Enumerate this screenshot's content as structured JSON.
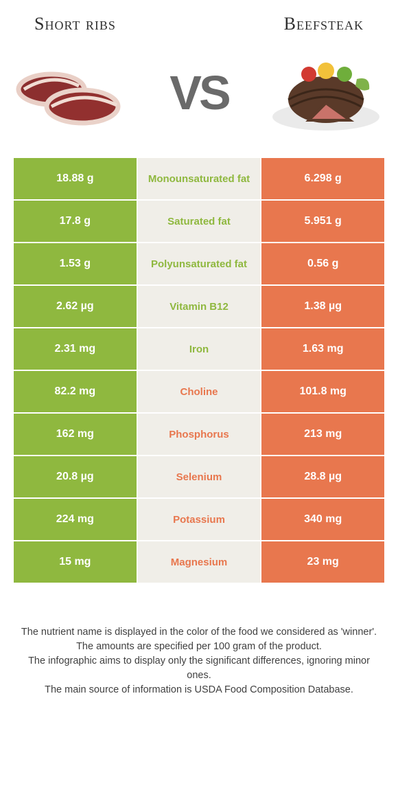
{
  "colors": {
    "left": "#8fb83f",
    "right": "#e8774e",
    "middle_bg": "#f0eee8",
    "label_left_win": "#8fb83f",
    "label_right_win": "#e8774e"
  },
  "titles": {
    "left": "Short ribs",
    "right": "Beefsteak"
  },
  "vs": "VS",
  "rows": [
    {
      "left": "18.88 g",
      "label": "Monounsaturated fat",
      "right": "6.298 g",
      "winner": "left"
    },
    {
      "left": "17.8 g",
      "label": "Saturated fat",
      "right": "5.951 g",
      "winner": "left"
    },
    {
      "left": "1.53 g",
      "label": "Polyunsaturated fat",
      "right": "0.56 g",
      "winner": "left"
    },
    {
      "left": "2.62 µg",
      "label": "Vitamin B12",
      "right": "1.38 µg",
      "winner": "left"
    },
    {
      "left": "2.31 mg",
      "label": "Iron",
      "right": "1.63 mg",
      "winner": "left"
    },
    {
      "left": "82.2 mg",
      "label": "Choline",
      "right": "101.8 mg",
      "winner": "right"
    },
    {
      "left": "162 mg",
      "label": "Phosphorus",
      "right": "213 mg",
      "winner": "right"
    },
    {
      "left": "20.8 µg",
      "label": "Selenium",
      "right": "28.8 µg",
      "winner": "right"
    },
    {
      "left": "224 mg",
      "label": "Potassium",
      "right": "340 mg",
      "winner": "right"
    },
    {
      "left": "15 mg",
      "label": "Magnesium",
      "right": "23 mg",
      "winner": "right"
    }
  ],
  "footer": {
    "l1": "The nutrient name is displayed in the color of the food we considered as 'winner'.",
    "l2": "The amounts are specified per 100 gram of the product.",
    "l3": "The infographic aims to display only the significant differences, ignoring minor ones.",
    "l4": "The main source of information is USDA Food Composition Database."
  }
}
